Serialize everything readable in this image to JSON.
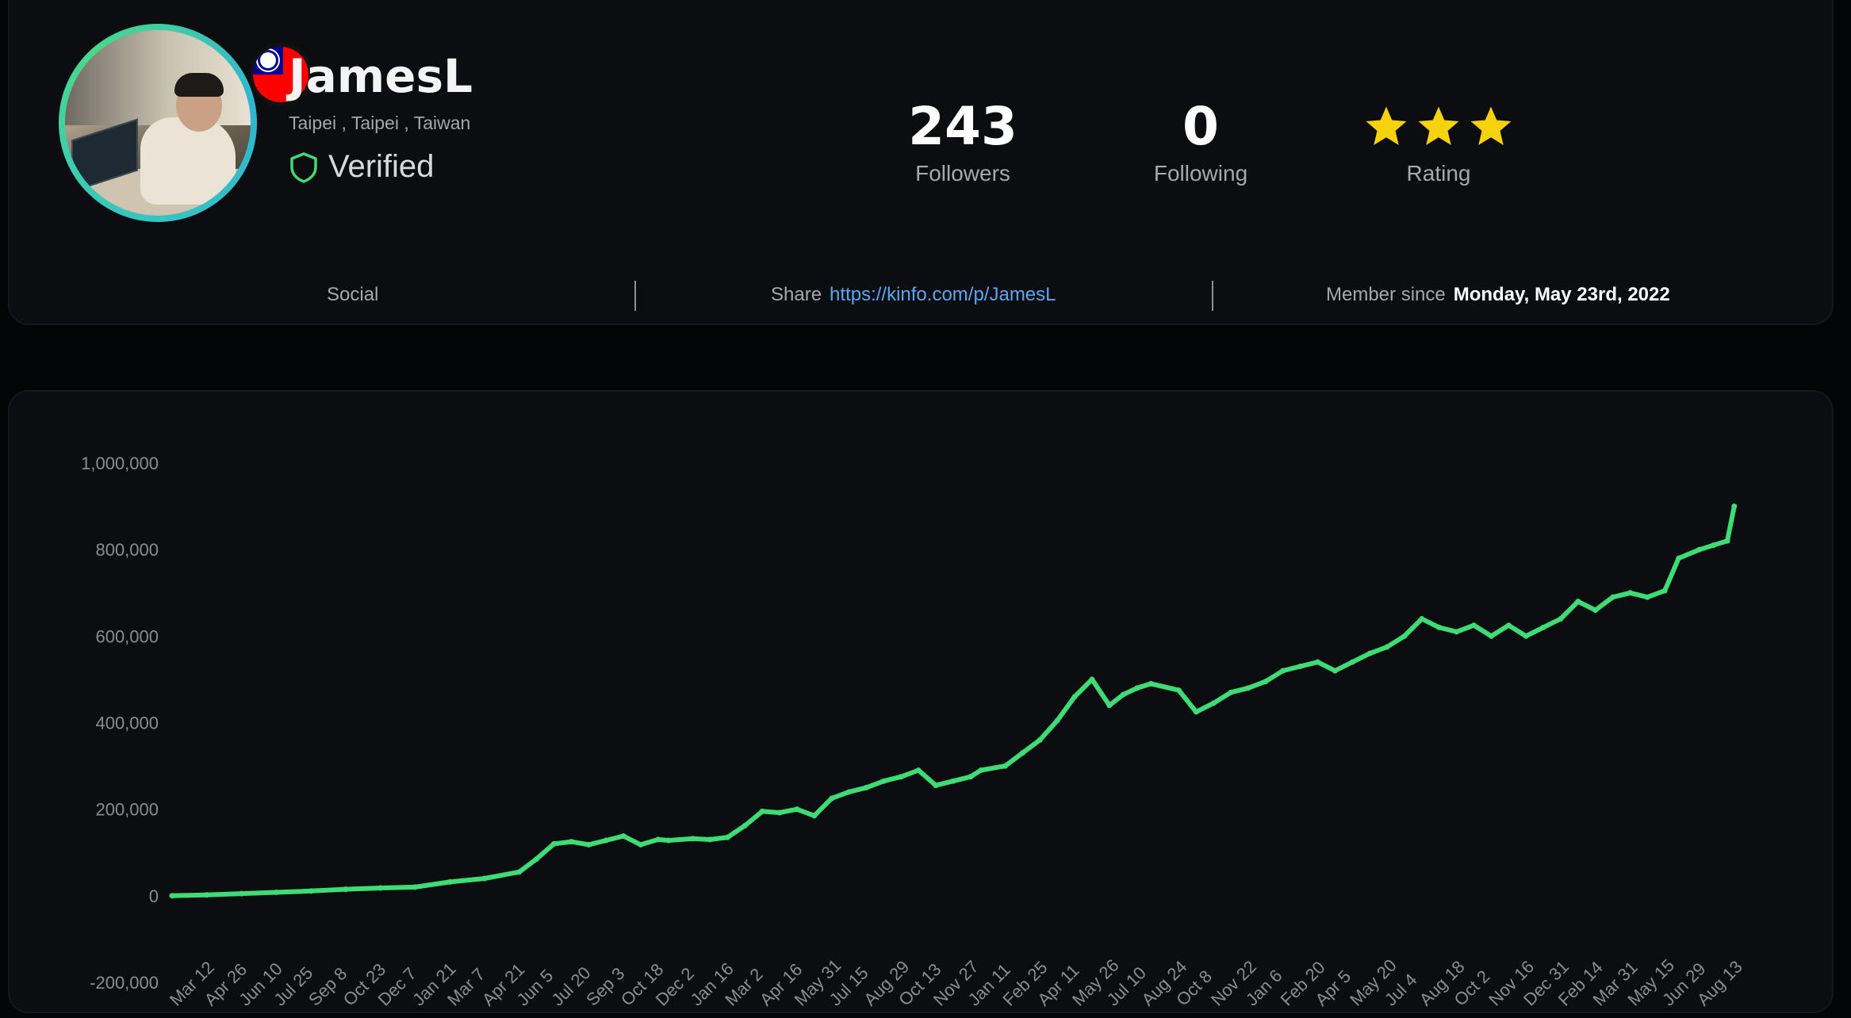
{
  "profile": {
    "username": "JamesL",
    "location": "Taipei , Taipei , Taiwan",
    "verified_label": "Verified",
    "flag_icon": "taiwan-flag-icon",
    "ring_color": "#3ccfa9"
  },
  "stats": {
    "followers_count": "243",
    "followers_label": "Followers",
    "following_count": "0",
    "following_label": "Following",
    "rating_label": "Rating",
    "rating_stars": 3,
    "star_color": "#f5d20b"
  },
  "info": {
    "social_label": "Social",
    "share_label": "Share",
    "share_url": "https://kinfo.com/p/JamesL",
    "member_since_label": "Member since",
    "member_since_date": "Monday, May 23rd, 2022"
  },
  "colors": {
    "background": "#040507",
    "card": "#0b0d11",
    "line": "#3ddc74",
    "link": "#58a7f5",
    "verified": "#3ddc74"
  },
  "chart_data": {
    "type": "line",
    "title": "",
    "xlabel": "",
    "ylabel": "",
    "ylim": [
      -200000,
      1000000
    ],
    "y_ticks": [
      "1,000,000",
      "800,000",
      "600,000",
      "400,000",
      "200,000",
      "0",
      "-200,000"
    ],
    "y_tick_values": [
      1000000,
      800000,
      600000,
      400000,
      200000,
      0,
      -200000
    ],
    "x_ticks": [
      "Mar 12",
      "Apr 26",
      "Jun 10",
      "Jul 25",
      "Sep 8",
      "Oct 23",
      "Dec 7",
      "Jan 21",
      "Mar 7",
      "Apr 21",
      "Jun 5",
      "Jul 20",
      "Sep 3",
      "Oct 18",
      "Dec 2",
      "Jan 16",
      "Mar 2",
      "Apr 16",
      "May 31",
      "Jul 15",
      "Aug 29",
      "Oct 13",
      "Nov 27",
      "Jan 11",
      "Feb 25",
      "Apr 11",
      "May 26",
      "Jul 10",
      "Aug 24",
      "Oct 8",
      "Nov 22",
      "Jan 6",
      "Feb 20",
      "Apr 5",
      "May 20",
      "Jul 4",
      "Aug 18",
      "Oct 2",
      "Nov 16",
      "Dec 31",
      "Feb 14",
      "Mar 31",
      "May 15",
      "Jun 29",
      "Aug 13"
    ],
    "grid": false,
    "legend": "none",
    "series": [
      {
        "x_tick_index": [
          0,
          1,
          2,
          3,
          4,
          5,
          6,
          7,
          8,
          9,
          10,
          10.5,
          11,
          11.5,
          12,
          12.5,
          13,
          13.5,
          14,
          14.3,
          15,
          15.5,
          16,
          16.5,
          17,
          17.5,
          18,
          18.5,
          19,
          19.5,
          20,
          20.5,
          21,
          21.5,
          22,
          22.5,
          23,
          23.3,
          24,
          24.5,
          25,
          25.5,
          26,
          26.5,
          27,
          27.4,
          27.8,
          28.2,
          29,
          29.5,
          30,
          30.5,
          31,
          31.5,
          32,
          32.5,
          33,
          33.5,
          34,
          34.5,
          35,
          35.5,
          36,
          36.5,
          37,
          37.5,
          38,
          38.5,
          39,
          39.5,
          40,
          40.5,
          41,
          41.5,
          42,
          42.5,
          43,
          43.4,
          44,
          44.4,
          44.8,
          45
        ],
        "values": [
          0,
          2000,
          5000,
          8000,
          11000,
          15000,
          18000,
          20000,
          32000,
          40000,
          55000,
          85000,
          120000,
          125000,
          118000,
          128000,
          138000,
          118000,
          130000,
          128000,
          132000,
          130000,
          135000,
          162000,
          195000,
          192000,
          200000,
          185000,
          225000,
          240000,
          250000,
          265000,
          275000,
          290000,
          255000,
          265000,
          275000,
          290000,
          300000,
          330000,
          360000,
          405000,
          460000,
          500000,
          440000,
          465000,
          480000,
          490000,
          475000,
          425000,
          445000,
          470000,
          480000,
          495000,
          520000,
          530000,
          540000,
          520000,
          540000,
          560000,
          575000,
          600000,
          640000,
          620000,
          610000,
          625000,
          600000,
          625000,
          600000,
          620000,
          640000,
          680000,
          660000,
          690000,
          700000,
          690000,
          705000,
          780000,
          800000,
          810000,
          820000,
          900000
        ]
      }
    ]
  }
}
